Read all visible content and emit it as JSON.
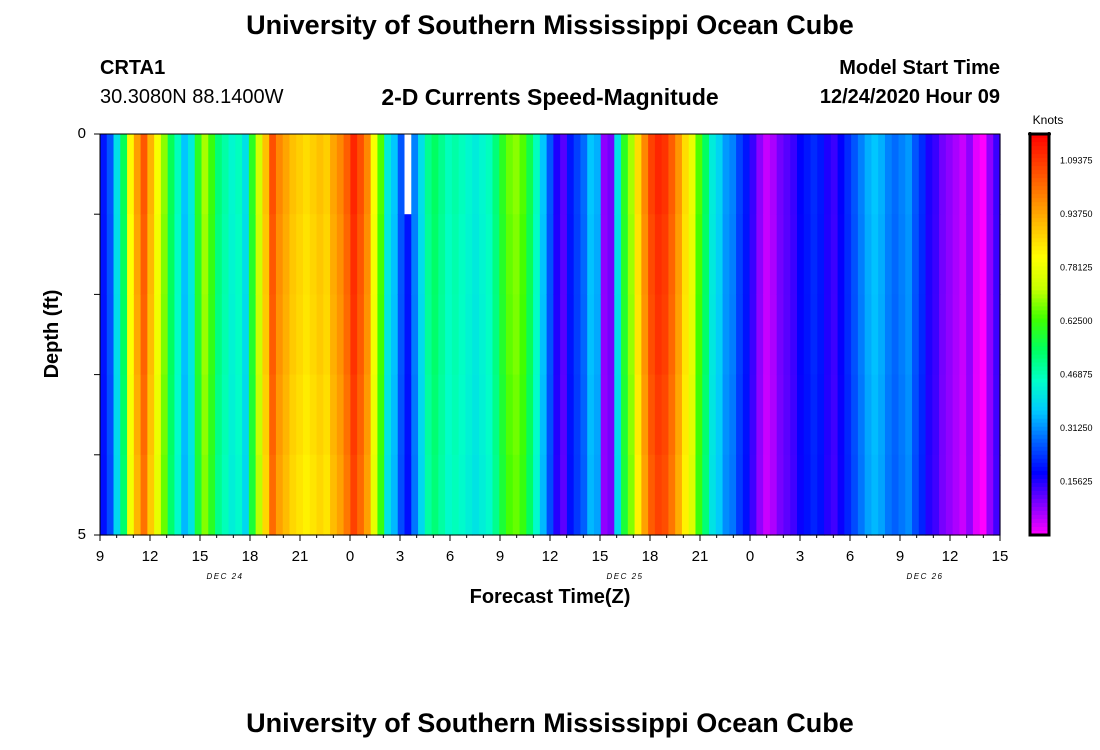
{
  "header": {
    "title": "University of Southern Mississippi Ocean Cube",
    "station_id": "CRTA1",
    "station_coords": "30.3080N 88.1400W",
    "subtitle": "2-D Currents Speed-Magnitude",
    "model_start_label": "Model Start Time",
    "model_start_value": "12/24/2020 Hour 09"
  },
  "footer": {
    "title": "University of Southern Mississippi Ocean Cube"
  },
  "chart_data": {
    "type": "heatmap",
    "title": "2-D Currents Speed-Magnitude",
    "xlabel": "Forecast Time(Z)",
    "ylabel": "Depth (ft)",
    "x_start": "12/24/2020 09Z",
    "x_step_hours": 1,
    "x_ticks": [
      "9",
      "12",
      "15",
      "18",
      "21",
      "0",
      "3",
      "6",
      "9",
      "12",
      "15",
      "18",
      "21",
      "0",
      "3",
      "6",
      "9",
      "12",
      "15"
    ],
    "date_labels": [
      {
        "label": "DEC 24",
        "at_tick": 2.5
      },
      {
        "label": "DEC 25",
        "at_tick": 10.5
      },
      {
        "label": "DEC 26",
        "at_tick": 16.5
      }
    ],
    "y_ticks": [
      "0",
      "5"
    ],
    "ylim": [
      0,
      5
    ],
    "depth_levels": 5,
    "colorbar": {
      "unit": "Knots",
      "vmin": 0.0,
      "vmax": 1.171875,
      "tick_labels": [
        "1.09375",
        "0.93750",
        "0.78125",
        "0.62500",
        "0.46875",
        "0.31250",
        "0.15625"
      ],
      "colors": [
        "#ff00ff",
        "#8000ff",
        "#0000ff",
        "#0060ff",
        "#00c8ff",
        "#00ffc8",
        "#00ff60",
        "#40ff00",
        "#c8ff00",
        "#ffff00",
        "#ffc000",
        "#ff8000",
        "#ff4000",
        "#ff0000"
      ]
    },
    "speeds_knots": [
      0.2,
      0.26,
      0.4,
      0.55,
      0.82,
      0.95,
      1.05,
      0.92,
      0.8,
      0.68,
      0.55,
      0.46,
      0.36,
      0.42,
      0.6,
      0.7,
      0.62,
      0.52,
      0.48,
      0.44,
      0.46,
      0.4,
      0.6,
      0.74,
      0.9,
      1.06,
      0.98,
      0.94,
      0.9,
      0.88,
      0.86,
      0.88,
      0.9,
      0.88,
      0.94,
      0.98,
      1.04,
      1.12,
      1.06,
      0.98,
      0.8,
      0.64,
      0.42,
      0.36,
      0.26,
      0.2,
      0.3,
      0.4,
      0.5,
      0.54,
      0.5,
      0.46,
      0.48,
      0.46,
      0.44,
      0.42,
      0.44,
      0.46,
      0.52,
      0.6,
      0.66,
      0.68,
      0.64,
      0.56,
      0.46,
      0.36,
      0.26,
      0.16,
      0.12,
      0.2,
      0.24,
      0.28,
      0.36,
      0.34,
      0.08,
      0.1,
      0.4,
      0.6,
      0.7,
      0.86,
      0.98,
      1.08,
      1.12,
      1.1,
      1.04,
      0.96,
      0.86,
      0.78,
      0.64,
      0.54,
      0.42,
      0.38,
      0.32,
      0.3,
      0.24,
      0.2,
      0.14,
      0.08,
      0.04,
      0.06,
      0.1,
      0.12,
      0.14,
      0.18,
      0.2,
      0.22,
      0.2,
      0.16,
      0.14,
      0.18,
      0.22,
      0.26,
      0.3,
      0.34,
      0.36,
      0.34,
      0.3,
      0.28,
      0.3,
      0.32,
      0.26,
      0.22,
      0.16,
      0.14,
      0.1,
      0.08,
      0.06,
      0.04,
      0.08,
      0.02,
      0.0,
      0.08,
      0.14
    ],
    "depth_factors": [
      1.0,
      0.99,
      0.985,
      0.975,
      0.965
    ],
    "missing_cells": [
      {
        "time_index": 45,
        "depth_index": 0
      }
    ]
  }
}
